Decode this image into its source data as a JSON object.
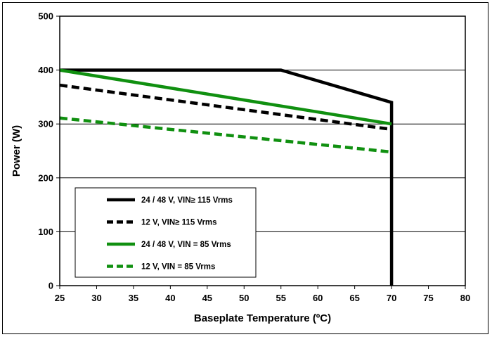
{
  "chart_data": {
    "type": "line",
    "title": "",
    "xlabel": "Baseplate Temperature (ºC)",
    "ylabel": "Power (W)",
    "xlim": [
      25,
      80
    ],
    "ylim": [
      0,
      500
    ],
    "xticks": [
      "25",
      "30",
      "35",
      "40",
      "45",
      "50",
      "55",
      "60",
      "65",
      "70",
      "75",
      "80"
    ],
    "yticks": [
      "0",
      "100",
      "200",
      "300",
      "400",
      "500"
    ],
    "grid": "horizontal",
    "legend_position": "bottom-left",
    "series": [
      {
        "name": "24 / 48 V, VIN≥ 115 Vrms",
        "color": "#000000",
        "dash": "solid",
        "x": [
          25,
          55,
          70,
          70
        ],
        "y": [
          400,
          400,
          340,
          0
        ]
      },
      {
        "name": "12 V, VIN≥ 115 Vrms",
        "color": "#000000",
        "dash": "dashed",
        "x": [
          25,
          70
        ],
        "y": [
          372,
          290
        ]
      },
      {
        "name": "24 / 48 V, VIN = 85 Vrms",
        "color": "#109010",
        "dash": "solid",
        "x": [
          25,
          70
        ],
        "y": [
          400,
          300
        ]
      },
      {
        "name": "12 V, VIN = 85 Vrms",
        "color": "#109010",
        "dash": "dashed",
        "x": [
          25,
          70
        ],
        "y": [
          311,
          248
        ]
      }
    ]
  }
}
